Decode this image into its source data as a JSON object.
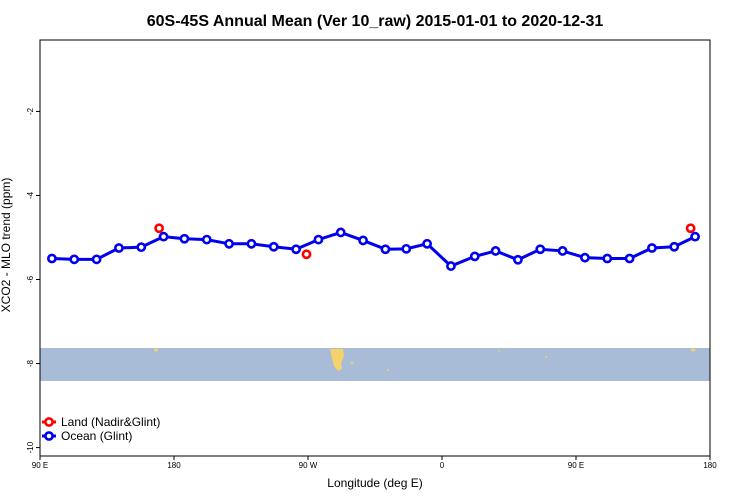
{
  "chart_data": {
    "type": "line",
    "title": "60S-45S Annual Mean (Ver 10_raw)   2015-01-01 to 2020-12-31",
    "xlabel": "Longitude (deg E)",
    "ylabel": "XCO2 - MLO trend (ppm)",
    "x_ticks": [
      {
        "value": 90,
        "label": "90 E"
      },
      {
        "value": 180,
        "label": "180"
      },
      {
        "value": 270,
        "label": "90 W"
      },
      {
        "value": 360,
        "label": "0"
      },
      {
        "value": 450,
        "label": "90 E"
      },
      {
        "value": 540,
        "label": "180"
      }
    ],
    "y_ticks": [
      {
        "value": -2,
        "label": "-2"
      },
      {
        "value": -4,
        "label": "-4"
      },
      {
        "value": -6,
        "label": "-6"
      },
      {
        "value": -8,
        "label": "-8"
      },
      {
        "value": -10,
        "label": "-10"
      }
    ],
    "xlim": [
      90,
      540
    ],
    "ylim": [
      -10.2,
      -0.3
    ],
    "grid": false,
    "legend_position": "bottom-left",
    "series": [
      {
        "name": "Land (Nadir&Glint)",
        "color": "#ff0000",
        "line": false,
        "x": [
          170,
          269,
          527
        ],
        "y": [
          -4.78,
          -5.4,
          -4.78
        ]
      },
      {
        "name": "Ocean (Glint)",
        "color": "#0000ee",
        "line": true,
        "x": [
          98,
          113,
          128,
          143,
          158,
          173,
          187,
          202,
          217,
          232,
          247,
          262,
          277,
          292,
          307,
          322,
          336,
          350,
          366,
          382,
          396,
          411,
          426,
          441,
          456,
          471,
          486,
          501,
          516,
          530
        ],
        "y": [
          -5.5,
          -5.52,
          -5.52,
          -5.25,
          -5.23,
          -4.98,
          -5.03,
          -5.05,
          -5.15,
          -5.15,
          -5.22,
          -5.28,
          -5.05,
          -4.88,
          -5.07,
          -5.28,
          -5.27,
          -5.15,
          -5.68,
          -5.45,
          -5.32,
          -5.53,
          -5.28,
          -5.32,
          -5.48,
          -5.5,
          -5.5,
          -5.25,
          -5.22,
          -4.98
        ]
      }
    ],
    "colors": {
      "map_band": "#a8bcd8",
      "land_mass": "#f5d36a"
    }
  }
}
